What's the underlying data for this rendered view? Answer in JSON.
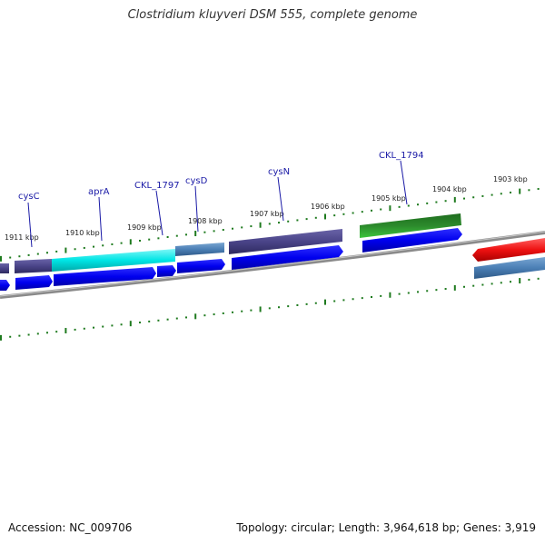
{
  "title": "Clostridium kluyveri DSM 555, complete genome",
  "footer": {
    "accession": "Accession: NC_009706",
    "topology": "Topology: circular; Length: 3,964,618 bp; Genes: 3,919"
  },
  "colors": {
    "backbone": "#8a8a8a",
    "tick": "#1e7a1e",
    "gene_label": "#1a1aa6",
    "cds_blue": "#0000ee",
    "cyan": "#00e5e5",
    "slate": "#4a4488",
    "steelblue": "#4b7fb5",
    "green": "#2c8a2c",
    "lightgreen": "#3cc43c",
    "red": "#ee1111"
  },
  "kbp_labels": [
    "1903 kbp",
    "1904 kbp",
    "1905 kbp",
    "1906 kbp",
    "1907 kbp",
    "1908 kbp",
    "1909 kbp",
    "1910 kbp",
    "1911 kbp"
  ],
  "gene_labels": [
    "CKL_1794",
    "cysN",
    "cysD",
    "CKL_1797",
    "aprA",
    "cysC"
  ]
}
